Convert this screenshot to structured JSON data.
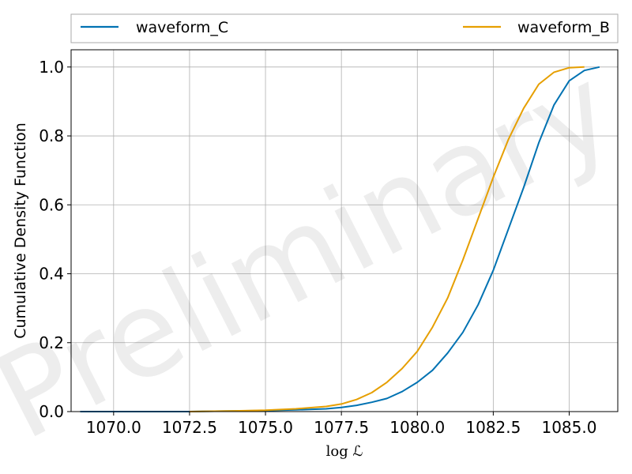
{
  "chart_data": {
    "type": "line",
    "title": "",
    "xlabel": "log ℒ",
    "ylabel": "Cumulative Density Function",
    "xlim": [
      1068.6,
      1086.6
    ],
    "ylim": [
      0.0,
      1.05
    ],
    "x_ticks": [
      1070.0,
      1072.5,
      1075.0,
      1077.5,
      1080.0,
      1082.5,
      1085.0
    ],
    "x_tick_labels": [
      "1070.0",
      "1072.5",
      "1075.0",
      "1077.5",
      "1080.0",
      "1082.5",
      "1085.0"
    ],
    "y_ticks": [
      0.0,
      0.2,
      0.4,
      0.6,
      0.8,
      1.0
    ],
    "y_tick_labels": [
      "0.0",
      "0.2",
      "0.4",
      "0.6",
      "0.8",
      "1.0"
    ],
    "grid": true,
    "legend_position": "top",
    "watermark": "Preliminary",
    "series": [
      {
        "name": "waveform_C",
        "color": "#0072B2",
        "x": [
          1068.9,
          1072.5,
          1074.0,
          1075.0,
          1076.0,
          1077.0,
          1077.5,
          1078.0,
          1078.5,
          1079.0,
          1079.5,
          1080.0,
          1080.5,
          1081.0,
          1081.5,
          1082.0,
          1082.5,
          1083.0,
          1083.5,
          1084.0,
          1084.5,
          1085.0,
          1085.5,
          1086.0
        ],
        "y": [
          0.0,
          0.0,
          0.002,
          0.003,
          0.005,
          0.008,
          0.012,
          0.018,
          0.027,
          0.038,
          0.058,
          0.085,
          0.12,
          0.17,
          0.23,
          0.31,
          0.41,
          0.53,
          0.65,
          0.78,
          0.89,
          0.96,
          0.99,
          1.0
        ]
      },
      {
        "name": "waveform_B",
        "color": "#E69F00",
        "x": [
          1072.5,
          1074.0,
          1075.0,
          1076.0,
          1077.0,
          1077.5,
          1078.0,
          1078.5,
          1079.0,
          1079.5,
          1080.0,
          1080.5,
          1081.0,
          1081.5,
          1082.0,
          1082.5,
          1083.0,
          1083.5,
          1084.0,
          1084.5,
          1085.0,
          1085.5
        ],
        "y": [
          0.0,
          0.002,
          0.004,
          0.008,
          0.015,
          0.022,
          0.035,
          0.055,
          0.085,
          0.125,
          0.175,
          0.245,
          0.33,
          0.44,
          0.56,
          0.68,
          0.79,
          0.88,
          0.95,
          0.985,
          0.998,
          1.0
        ]
      }
    ]
  }
}
